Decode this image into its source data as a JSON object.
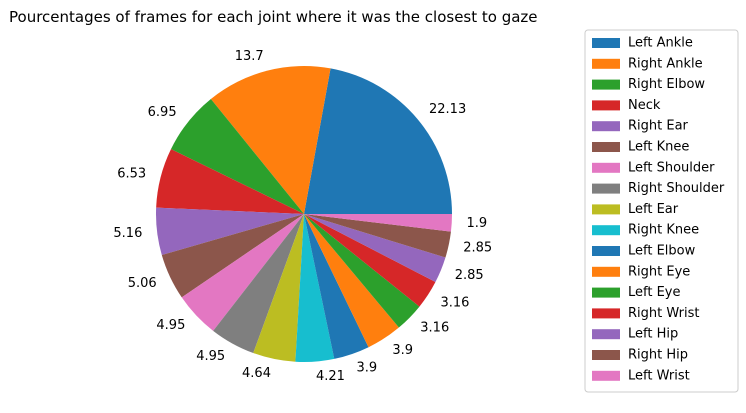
{
  "chart_data": {
    "type": "pie",
    "title": "Pourcentages of frames for each joint where it was the closest to gaze",
    "legend_position": "right",
    "slices": [
      {
        "label": "Left Ankle",
        "value": 22.13,
        "value_label": "22.13",
        "color": "#1f77b4"
      },
      {
        "label": "Right Ankle",
        "value": 13.7,
        "value_label": "13.7",
        "color": "#ff7f0e"
      },
      {
        "label": "Right Elbow",
        "value": 6.95,
        "value_label": "6.95",
        "color": "#2ca02c"
      },
      {
        "label": "Neck",
        "value": 6.53,
        "value_label": "6.53",
        "color": "#d62728"
      },
      {
        "label": "Right Ear",
        "value": 5.16,
        "value_label": "5.16",
        "color": "#9467bd"
      },
      {
        "label": "Left Knee",
        "value": 5.06,
        "value_label": "5.06",
        "color": "#8c564b"
      },
      {
        "label": "Left Shoulder",
        "value": 4.95,
        "value_label": "4.95",
        "color": "#e377c2"
      },
      {
        "label": "Right Shoulder",
        "value": 4.95,
        "value_label": "4.95",
        "color": "#7f7f7f"
      },
      {
        "label": "Left Ear",
        "value": 4.64,
        "value_label": "4.64",
        "color": "#bcbd22"
      },
      {
        "label": "Right Knee",
        "value": 4.21,
        "value_label": "4.21",
        "color": "#17becf"
      },
      {
        "label": "Left Elbow",
        "value": 3.9,
        "value_label": "3.9",
        "color": "#1f77b4"
      },
      {
        "label": "Right Eye",
        "value": 3.9,
        "value_label": "3.9",
        "color": "#ff7f0e"
      },
      {
        "label": "Left Eye",
        "value": 3.16,
        "value_label": "3.16",
        "color": "#2ca02c"
      },
      {
        "label": "Right Wrist",
        "value": 3.16,
        "value_label": "3.16",
        "color": "#d62728"
      },
      {
        "label": "Left Hip",
        "value": 2.85,
        "value_label": "2.85",
        "color": "#9467bd"
      },
      {
        "label": "Right Hip",
        "value": 2.85,
        "value_label": "2.85",
        "color": "#8c564b"
      },
      {
        "label": "Left Wrist",
        "value": 1.9,
        "value_label": "1.9",
        "color": "#e377c2"
      }
    ]
  }
}
